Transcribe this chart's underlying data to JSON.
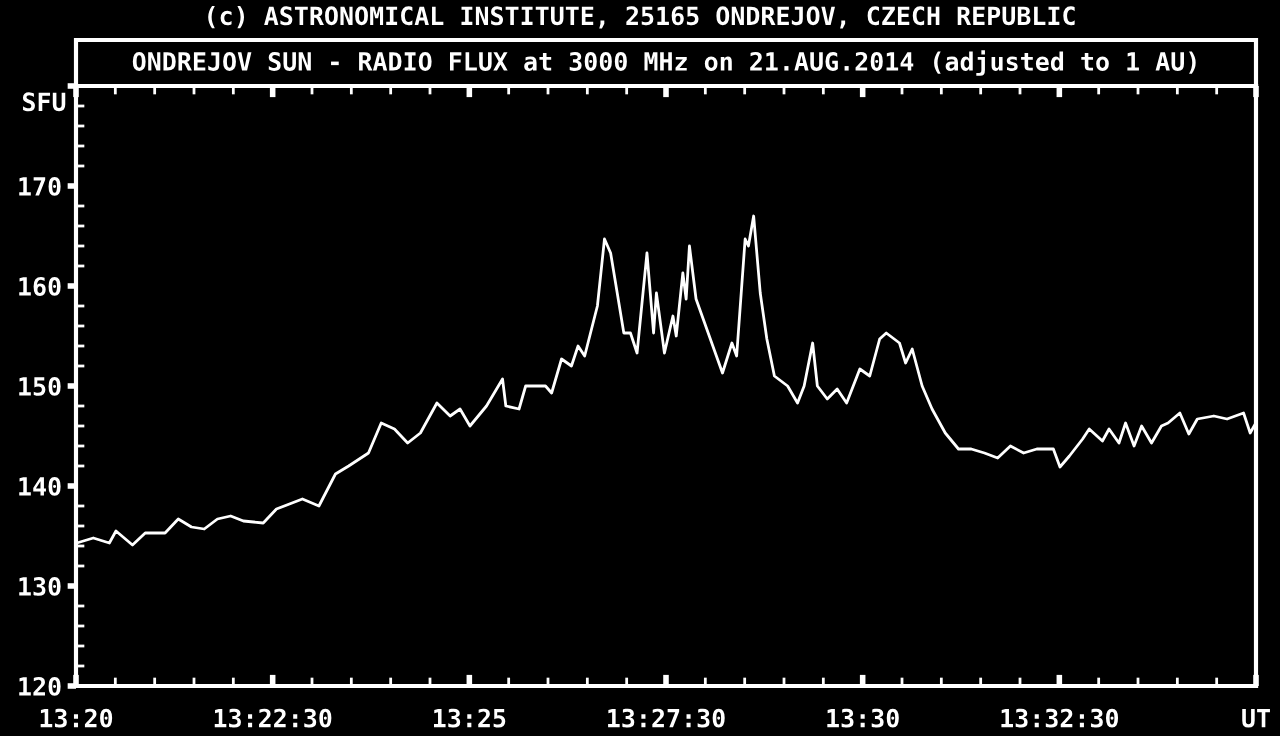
{
  "chart_data": {
    "type": "line",
    "title": "ONDREJOV SUN - RADIO FLUX at 3000 MHz on 21.AUG.2014 (adjusted to 1 AU)",
    "annotations": [
      "(c) ASTRONOMICAL INSTITUTE, 25165 ONDREJOV, CZECH REPUBLIC"
    ],
    "ylabel": "SFU",
    "series": [
      {
        "color": "#ffffff",
        "x": [
          13.3335,
          13.337,
          13.3404,
          13.3418,
          13.3453,
          13.348,
          13.3522,
          13.355,
          13.3578,
          13.3605,
          13.3633,
          13.3661,
          13.3688,
          13.373,
          13.3758,
          13.3813,
          13.3848,
          13.3883,
          13.3911,
          13.3953,
          13.398,
          13.4008,
          13.4036,
          13.4063,
          13.4098,
          13.4126,
          13.4147,
          13.4168,
          13.4203,
          13.4237,
          13.4244,
          13.4272,
          13.4286,
          13.4328,
          13.4341,
          13.4362,
          13.4383,
          13.4397,
          13.4411,
          13.4438,
          13.4453,
          13.4466,
          13.4494,
          13.4508,
          13.4522,
          13.4543,
          13.4557,
          13.4563,
          13.458,
          13.4598,
          13.4605,
          13.4619,
          13.4626,
          13.4633,
          13.4647,
          13.4703,
          13.4723,
          13.4733,
          13.4751,
          13.4758,
          13.4769,
          13.4783,
          13.4797,
          13.4813,
          13.4841,
          13.4862,
          13.4876,
          13.4894,
          13.4904,
          13.4925,
          13.4946,
          13.4966,
          13.4994,
          13.5015,
          13.5036,
          13.505,
          13.5078,
          13.5091,
          13.5105,
          13.5126,
          13.5147,
          13.5175,
          13.5203,
          13.523,
          13.5258,
          13.5286,
          13.5313,
          13.5341,
          13.5369,
          13.5404,
          13.5418,
          13.5438,
          13.5466,
          13.548,
          13.5508,
          13.5522,
          13.5543,
          13.5557,
          13.5575,
          13.5591,
          13.5612,
          13.5633,
          13.5647,
          13.5672,
          13.5691,
          13.5709,
          13.5744,
          13.5772,
          13.5807,
          13.5821,
          13.5833
        ],
        "values": [
          134.3,
          134.8,
          134.3,
          135.5,
          134.1,
          135.3,
          135.3,
          136.7,
          135.9,
          135.7,
          136.7,
          137.0,
          136.5,
          136.3,
          137.7,
          138.7,
          138.0,
          141.2,
          142.0,
          143.3,
          146.3,
          145.7,
          144.3,
          145.3,
          148.3,
          147.0,
          147.7,
          146.0,
          148.0,
          150.7,
          148.0,
          147.7,
          150.0,
          150.0,
          149.3,
          152.7,
          152.0,
          154.0,
          153.0,
          158.0,
          164.7,
          163.3,
          155.3,
          155.3,
          153.3,
          163.3,
          155.3,
          159.3,
          153.3,
          157.0,
          155.0,
          161.3,
          158.7,
          164.0,
          158.7,
          151.3,
          154.3,
          153.0,
          164.7,
          164.0,
          167.0,
          159.3,
          154.7,
          151.0,
          150.0,
          148.3,
          150.0,
          154.3,
          150.0,
          148.7,
          149.7,
          148.3,
          151.7,
          151.0,
          154.7,
          155.3,
          154.3,
          152.3,
          153.7,
          150.0,
          147.7,
          145.3,
          143.7,
          143.7,
          143.3,
          142.8,
          144.0,
          143.3,
          143.7,
          143.7,
          141.9,
          143.0,
          144.7,
          145.7,
          144.5,
          145.7,
          144.3,
          146.3,
          144.0,
          146.0,
          144.3,
          146.0,
          146.3,
          147.3,
          145.2,
          146.7,
          147.0,
          146.7,
          147.3,
          145.3,
          146.3
        ]
      }
    ],
    "xlim": [
      13.333333,
      13.583333
    ],
    "xticks": [
      {
        "value": 13.333333,
        "label": "13:20"
      },
      {
        "value": 13.375,
        "label": "13:22:30"
      },
      {
        "value": 13.416667,
        "label": "13:25"
      },
      {
        "value": 13.458333,
        "label": "13:27:30"
      },
      {
        "value": 13.5,
        "label": "13:30"
      },
      {
        "value": 13.541667,
        "label": "13:32:30"
      },
      {
        "value": 13.583333,
        "label": "UT"
      }
    ],
    "ylim": [
      120,
      180
    ],
    "yticks": [
      120,
      130,
      140,
      150,
      160,
      170,
      {
        "value": 180,
        "label": null
      }
    ],
    "grid": false,
    "marker": "none",
    "line_style": "solid"
  }
}
